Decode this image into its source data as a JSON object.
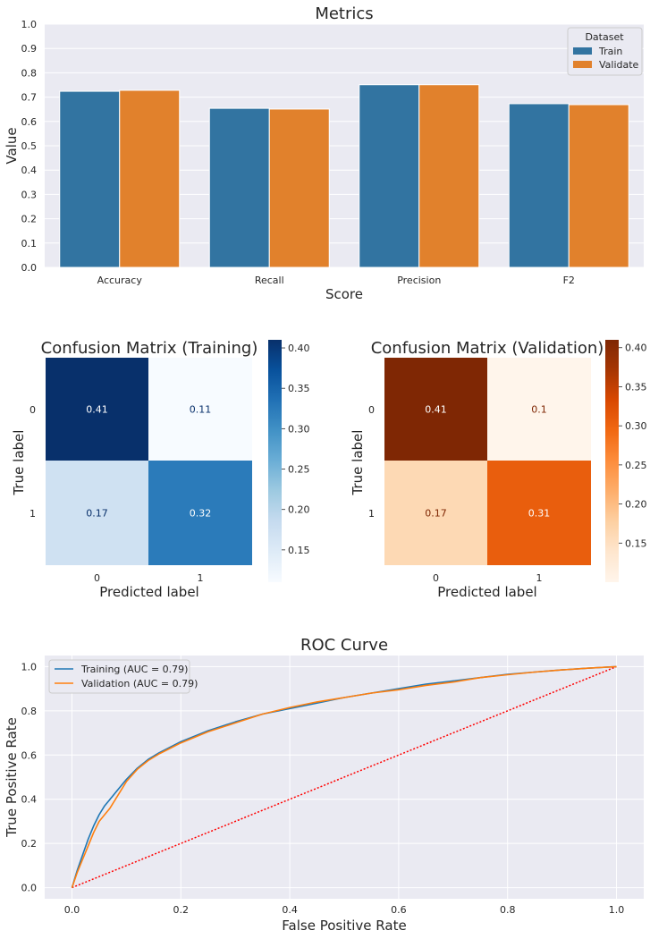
{
  "chart_data": [
    {
      "type": "bar",
      "title": "Metrics",
      "xlabel": "Score",
      "ylabel": "Value",
      "categories": [
        "Accuracy",
        "Recall",
        "Precision",
        "F2"
      ],
      "series": [
        {
          "name": "Train",
          "values": [
            0.724,
            0.654,
            0.751,
            0.673
          ],
          "color": "#3274a1"
        },
        {
          "name": "Validate",
          "values": [
            0.728,
            0.651,
            0.751,
            0.669
          ],
          "color": "#e1812c"
        }
      ],
      "ylim": [
        0,
        1.0
      ],
      "yticks": [
        "0.0",
        "0.1",
        "0.2",
        "0.3",
        "0.4",
        "0.5",
        "0.6",
        "0.7",
        "0.8",
        "0.9",
        "1.0"
      ],
      "grid": true,
      "legend": {
        "title": "Dataset",
        "placement": "top-right"
      }
    },
    {
      "type": "heatmap",
      "title": "Confusion Matrix (Training)",
      "xlabel": "Predicted label",
      "ylabel": "True label",
      "x_categories": [
        "0",
        "1"
      ],
      "y_categories": [
        "0",
        "1"
      ],
      "values": [
        [
          0.41,
          0.11
        ],
        [
          0.17,
          0.32
        ]
      ],
      "cell_labels": [
        [
          "0.41",
          "0.11"
        ],
        [
          "0.17",
          "0.32"
        ]
      ],
      "cell_colors": [
        [
          "#08306b",
          "#f7fbff"
        ],
        [
          "#cfe1f2",
          "#2b7bba"
        ]
      ],
      "cell_text_colors": [
        [
          "#ffffff",
          "#08306b"
        ],
        [
          "#08306b",
          "#ffffff"
        ]
      ],
      "colormap": "Blues",
      "colorbar_stops": [
        "#f7fbff",
        "#deebf7",
        "#c6dbef",
        "#9ecae1",
        "#6baed6",
        "#4292c6",
        "#2171b5",
        "#08519c",
        "#08306b"
      ],
      "colorbar_range": [
        0.11,
        0.41
      ],
      "colorbar_ticks": [
        "0.15",
        "0.20",
        "0.25",
        "0.30",
        "0.35",
        "0.40"
      ]
    },
    {
      "type": "heatmap",
      "title": "Confusion Matrix (Validation)",
      "xlabel": "Predicted label",
      "ylabel": "True label",
      "x_categories": [
        "0",
        "1"
      ],
      "y_categories": [
        "0",
        "1"
      ],
      "values": [
        [
          0.41,
          0.1
        ],
        [
          0.17,
          0.31
        ]
      ],
      "cell_labels": [
        [
          "0.41",
          "0.1"
        ],
        [
          "0.17",
          "0.31"
        ]
      ],
      "cell_colors": [
        [
          "#7f2704",
          "#fff5eb"
        ],
        [
          "#fdd9b4",
          "#e95e0d"
        ]
      ],
      "cell_text_colors": [
        [
          "#ffffff",
          "#7f2704"
        ],
        [
          "#7f2704",
          "#ffffff"
        ]
      ],
      "colormap": "Oranges",
      "colorbar_stops": [
        "#fff5eb",
        "#fee6ce",
        "#fdd0a2",
        "#fdae6b",
        "#fd8d3c",
        "#f16913",
        "#d94801",
        "#a63603",
        "#7f2704"
      ],
      "colorbar_range": [
        0.1,
        0.41
      ],
      "colorbar_ticks": [
        "0.15",
        "0.20",
        "0.25",
        "0.30",
        "0.35",
        "0.40"
      ]
    },
    {
      "type": "line",
      "title": "ROC Curve",
      "xlabel": "False Positive Rate",
      "ylabel": "True Positive Rate",
      "xlim": [
        -0.05,
        1.05
      ],
      "ylim": [
        -0.05,
        1.05
      ],
      "xticks": [
        "0.0",
        "0.2",
        "0.4",
        "0.6",
        "0.8",
        "1.0"
      ],
      "yticks": [
        "0.0",
        "0.2",
        "0.4",
        "0.6",
        "0.8",
        "1.0"
      ],
      "grid": true,
      "legend": {
        "placement": "top-left"
      },
      "series": [
        {
          "name": "Training (AUC = 0.79)",
          "color": "#1f77b4",
          "x": [
            0,
            0.01,
            0.02,
            0.03,
            0.04,
            0.05,
            0.06,
            0.07,
            0.08,
            0.09,
            0.1,
            0.12,
            0.14,
            0.16,
            0.18,
            0.2,
            0.25,
            0.3,
            0.35,
            0.4,
            0.45,
            0.5,
            0.55,
            0.6,
            0.65,
            0.7,
            0.75,
            0.8,
            0.85,
            0.9,
            0.95,
            1.0
          ],
          "y": [
            0,
            0.08,
            0.15,
            0.22,
            0.28,
            0.33,
            0.37,
            0.4,
            0.43,
            0.46,
            0.49,
            0.54,
            0.58,
            0.61,
            0.635,
            0.66,
            0.71,
            0.75,
            0.785,
            0.81,
            0.835,
            0.86,
            0.88,
            0.9,
            0.92,
            0.935,
            0.95,
            0.965,
            0.975,
            0.985,
            0.993,
            1.0
          ]
        },
        {
          "name": "Validation (AUC = 0.79)",
          "color": "#ff7f0e",
          "x": [
            0,
            0.01,
            0.02,
            0.03,
            0.04,
            0.05,
            0.06,
            0.07,
            0.08,
            0.09,
            0.1,
            0.12,
            0.14,
            0.16,
            0.18,
            0.2,
            0.25,
            0.3,
            0.35,
            0.4,
            0.45,
            0.5,
            0.55,
            0.6,
            0.65,
            0.7,
            0.75,
            0.8,
            0.85,
            0.9,
            0.95,
            1.0
          ],
          "y": [
            0,
            0.07,
            0.13,
            0.19,
            0.25,
            0.3,
            0.33,
            0.36,
            0.4,
            0.44,
            0.48,
            0.535,
            0.575,
            0.605,
            0.63,
            0.655,
            0.705,
            0.745,
            0.785,
            0.815,
            0.84,
            0.86,
            0.88,
            0.895,
            0.915,
            0.93,
            0.95,
            0.963,
            0.975,
            0.985,
            0.993,
            1.0
          ]
        },
        {
          "name": "",
          "color": "#ff0000",
          "style": "dotted",
          "x": [
            0,
            1
          ],
          "y": [
            0,
            1
          ]
        }
      ]
    }
  ]
}
